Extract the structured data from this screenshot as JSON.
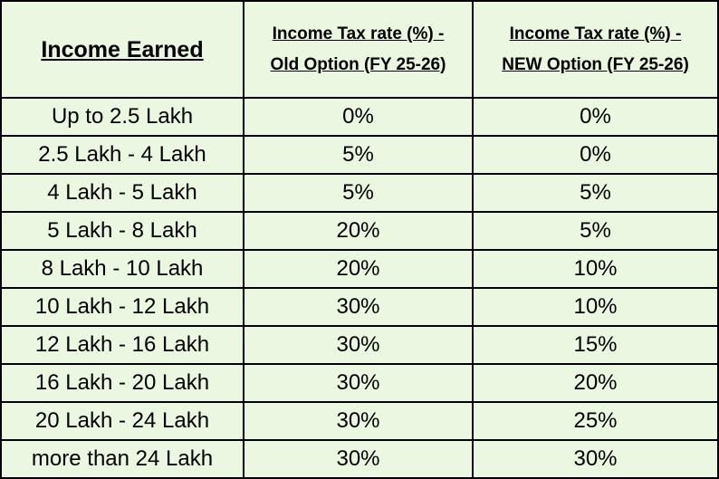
{
  "table": {
    "headers": [
      [
        "Income Earned"
      ],
      [
        "Income Tax rate (%) -",
        "Old Option (FY 25-26)"
      ],
      [
        "Income Tax rate (%) -",
        "NEW Option (FY 25-26)"
      ]
    ],
    "rows": [
      [
        "Up to 2.5 Lakh",
        "0%",
        "0%"
      ],
      [
        "2.5 Lakh - 4 Lakh",
        "5%",
        "0%"
      ],
      [
        "4 Lakh - 5 Lakh",
        "5%",
        "5%"
      ],
      [
        "5 Lakh - 8 Lakh",
        "20%",
        "5%"
      ],
      [
        "8 Lakh - 10 Lakh",
        "20%",
        "10%"
      ],
      [
        "10 Lakh - 12 Lakh",
        "30%",
        "10%"
      ],
      [
        "12 Lakh - 16 Lakh",
        "30%",
        "15%"
      ],
      [
        "16 Lakh - 20 Lakh",
        "30%",
        "20%"
      ],
      [
        "20 Lakh - 24 Lakh",
        "30%",
        "25%"
      ],
      [
        "more than 24 Lakh",
        "30%",
        "30%"
      ]
    ]
  }
}
